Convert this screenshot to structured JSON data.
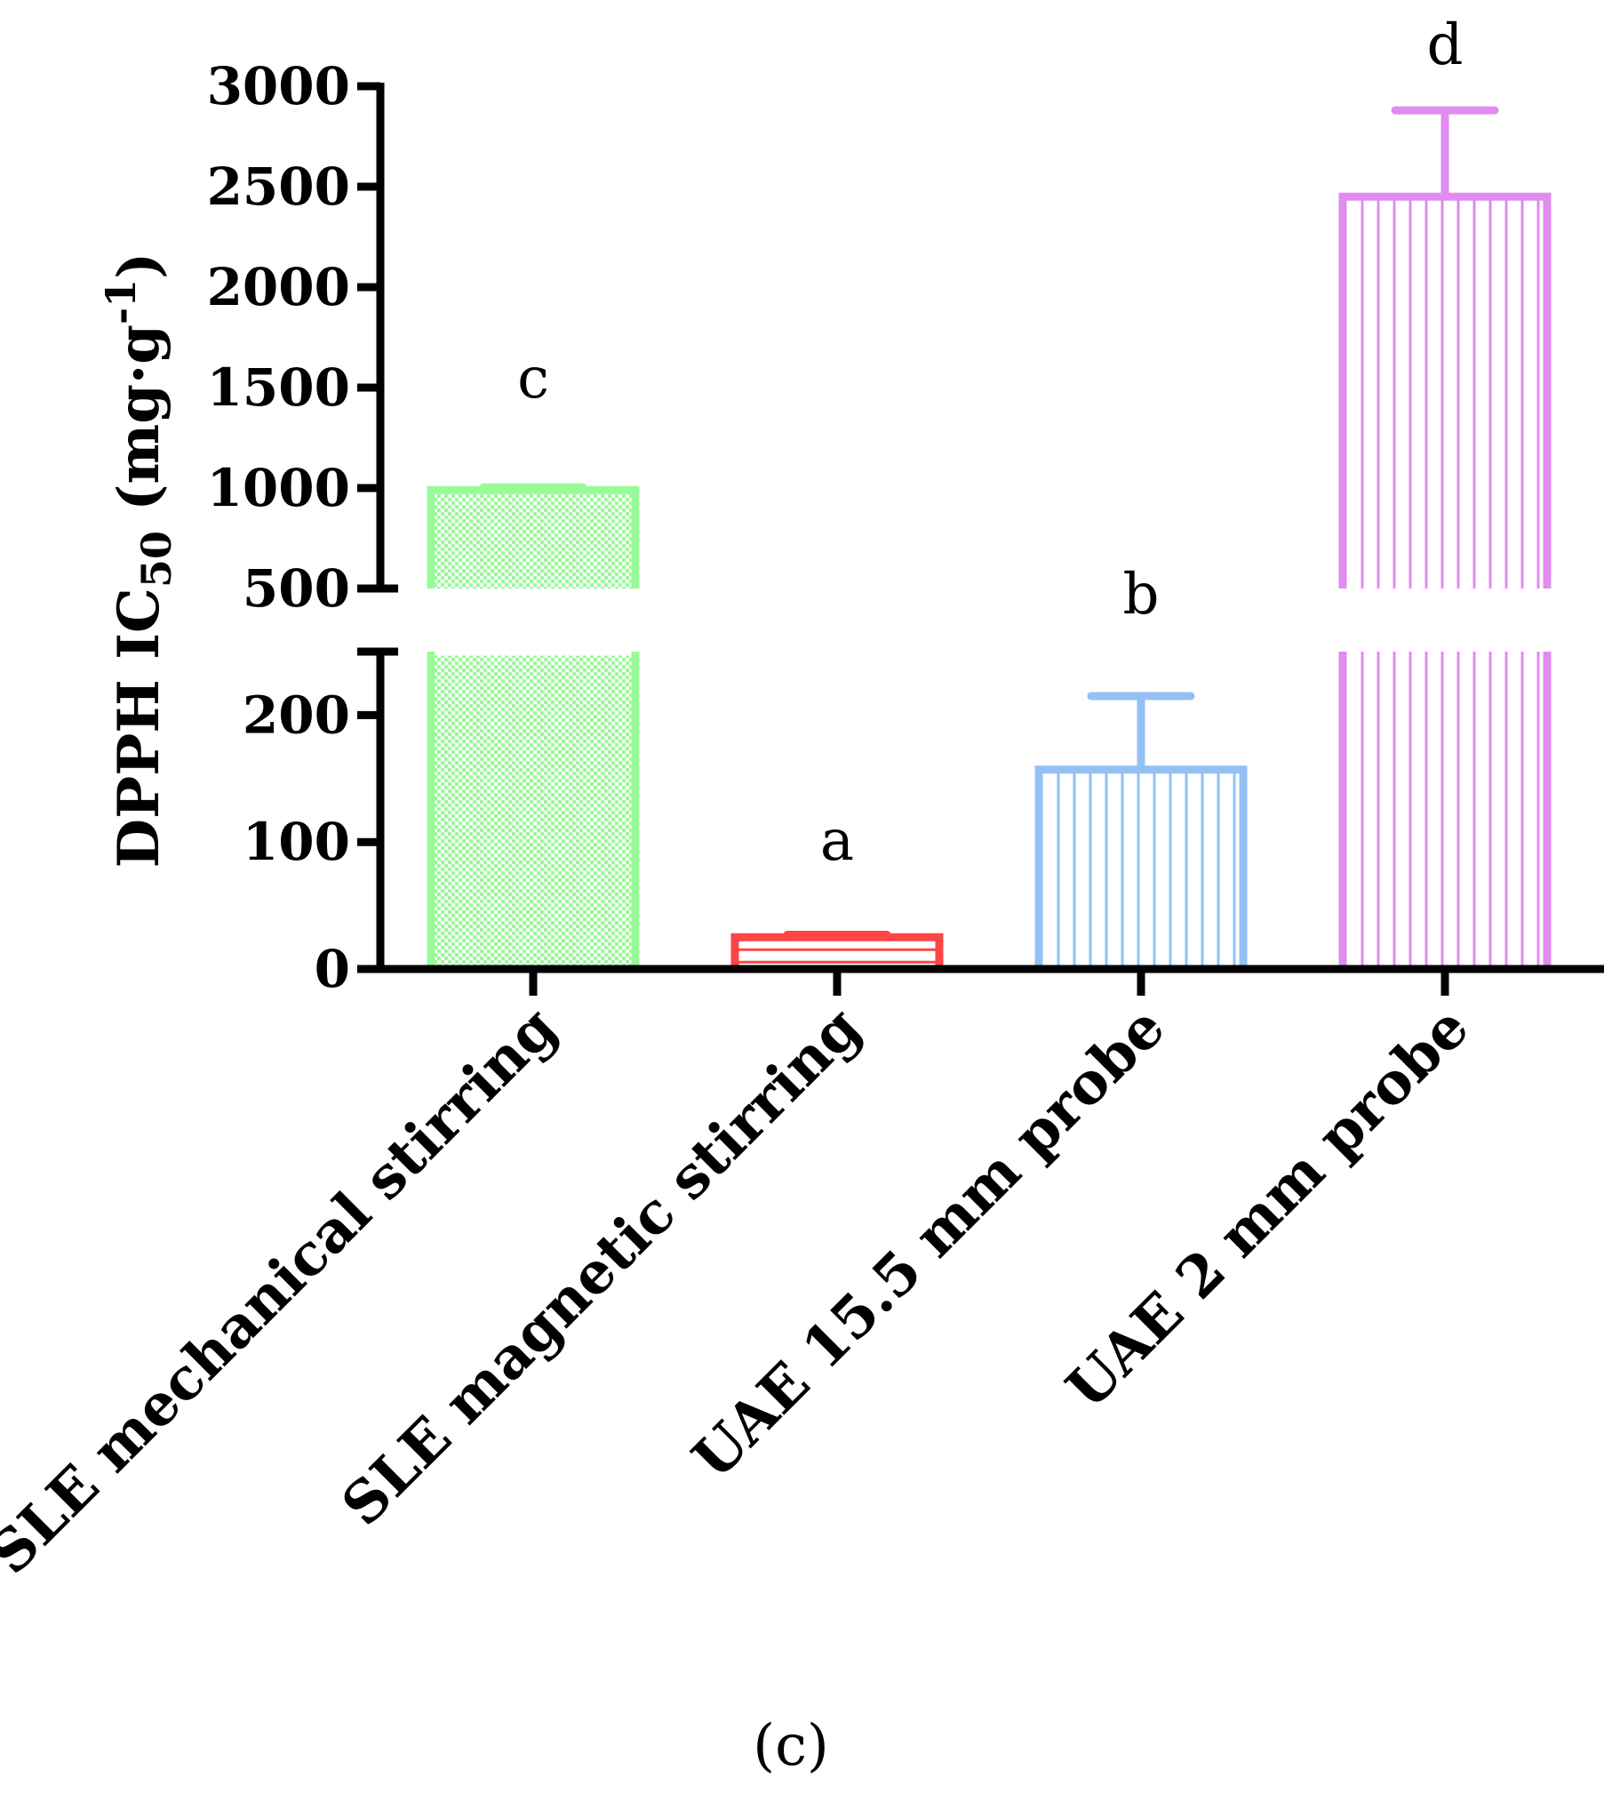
{
  "chart_data": {
    "type": "bar",
    "title": "",
    "panel_label": "(c)",
    "ylabel": {
      "prefix": "DPPH IC",
      "subscript": "50",
      "unit_open": " (mg·g",
      "superscript": "-1",
      "unit_close": ")"
    },
    "xlabel": "",
    "categories": [
      "SLE mechanical stirring",
      "SLE magnetic stirring",
      "UAE 15.5 mm probe",
      "UAE 2 mm probe"
    ],
    "values": [
      990,
      25,
      157,
      2450
    ],
    "errors": [
      5,
      2,
      58,
      430
    ],
    "significance": [
      "c",
      "a",
      "b",
      "d"
    ],
    "colors": [
      "#98fb98",
      "#ff4545",
      "#93c1f5",
      "#e08cf0"
    ],
    "patterns": [
      "checker",
      "horizontal",
      "vertical",
      "vertical"
    ],
    "y_axis": {
      "broken": true,
      "lower_range": [
        0,
        250
      ],
      "upper_range": [
        500,
        3000
      ],
      "lower_ticks": [
        "0",
        "100",
        "200"
      ],
      "upper_ticks": [
        "500",
        "1000",
        "1500",
        "2000",
        "2500",
        "3000"
      ]
    },
    "grid": false,
    "legend": "none"
  }
}
